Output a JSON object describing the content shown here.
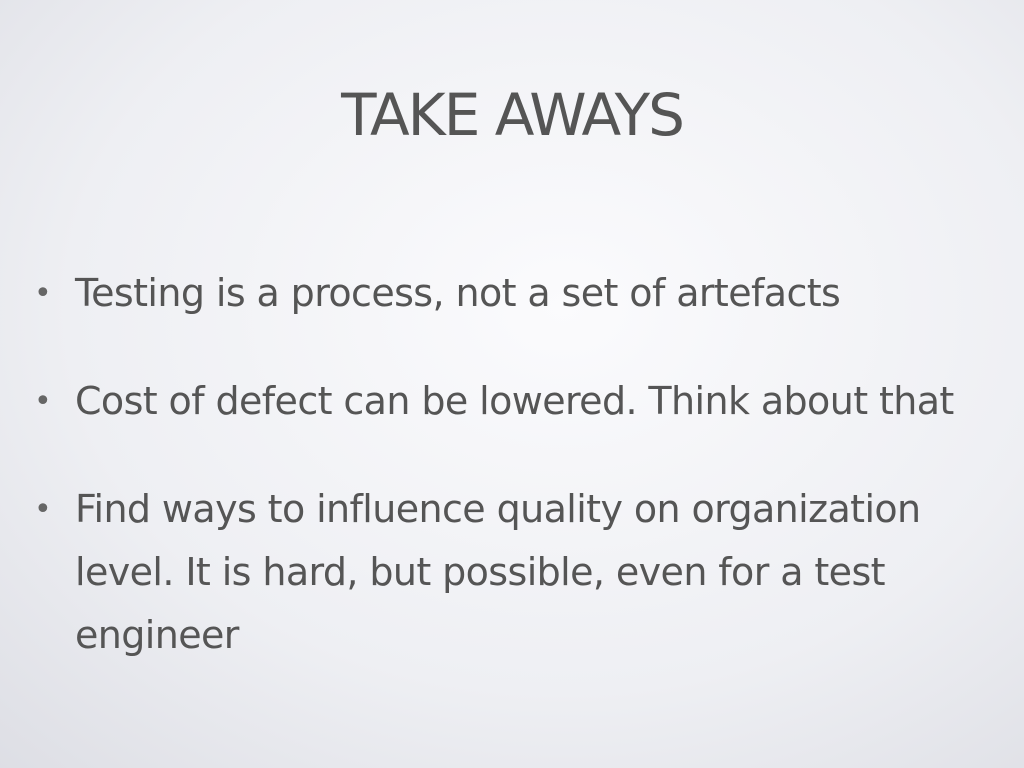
{
  "slide": {
    "title": "TAKE AWAYS",
    "bullets": [
      {
        "marker": "•",
        "text": "Testing is a process, not a set of artefacts"
      },
      {
        "marker": "•",
        "text": "Cost of defect can be lowered. Think about that"
      },
      {
        "marker": "•",
        "text": "Find ways to influence quality on organization level. It is hard, but possible, even for a test engineer"
      }
    ]
  },
  "colors": {
    "text": "#555555",
    "background_center": "#fbfbfd",
    "background_edge": "#d9dae1"
  }
}
